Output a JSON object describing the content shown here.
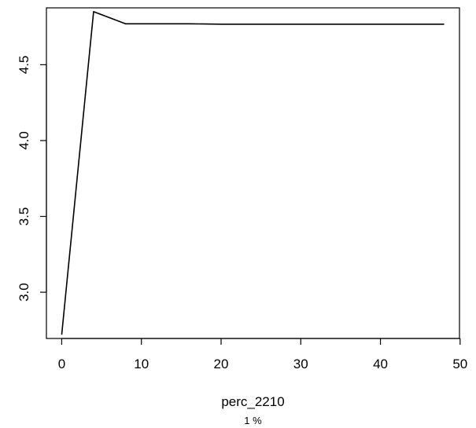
{
  "chart_data": {
    "type": "line",
    "xlabel": "perc_2210",
    "sub": "1 %",
    "ylabel": "",
    "x": [
      0,
      4,
      8,
      12,
      16,
      20,
      24,
      28,
      32,
      36,
      40,
      44,
      48
    ],
    "series": [
      {
        "values": [
          2.72,
          4.85,
          4.77,
          4.77,
          4.77,
          4.767,
          4.767,
          4.767,
          4.767,
          4.767,
          4.767,
          4.767,
          4.767
        ],
        "color": "#000000"
      }
    ],
    "xlim": [
      -1.92,
      49.92
    ],
    "ylim": [
      2.695,
      4.875
    ],
    "xticks": [
      0,
      10,
      20,
      30,
      40,
      50
    ],
    "yticks": [
      3.0,
      3.5,
      4.0,
      4.5
    ],
    "xtick_labels": [
      "0",
      "10",
      "20",
      "30",
      "40",
      "50"
    ],
    "ytick_labels": [
      "3.0",
      "3.5",
      "4.0",
      "4.5"
    ],
    "grid": false,
    "legend": "none"
  }
}
